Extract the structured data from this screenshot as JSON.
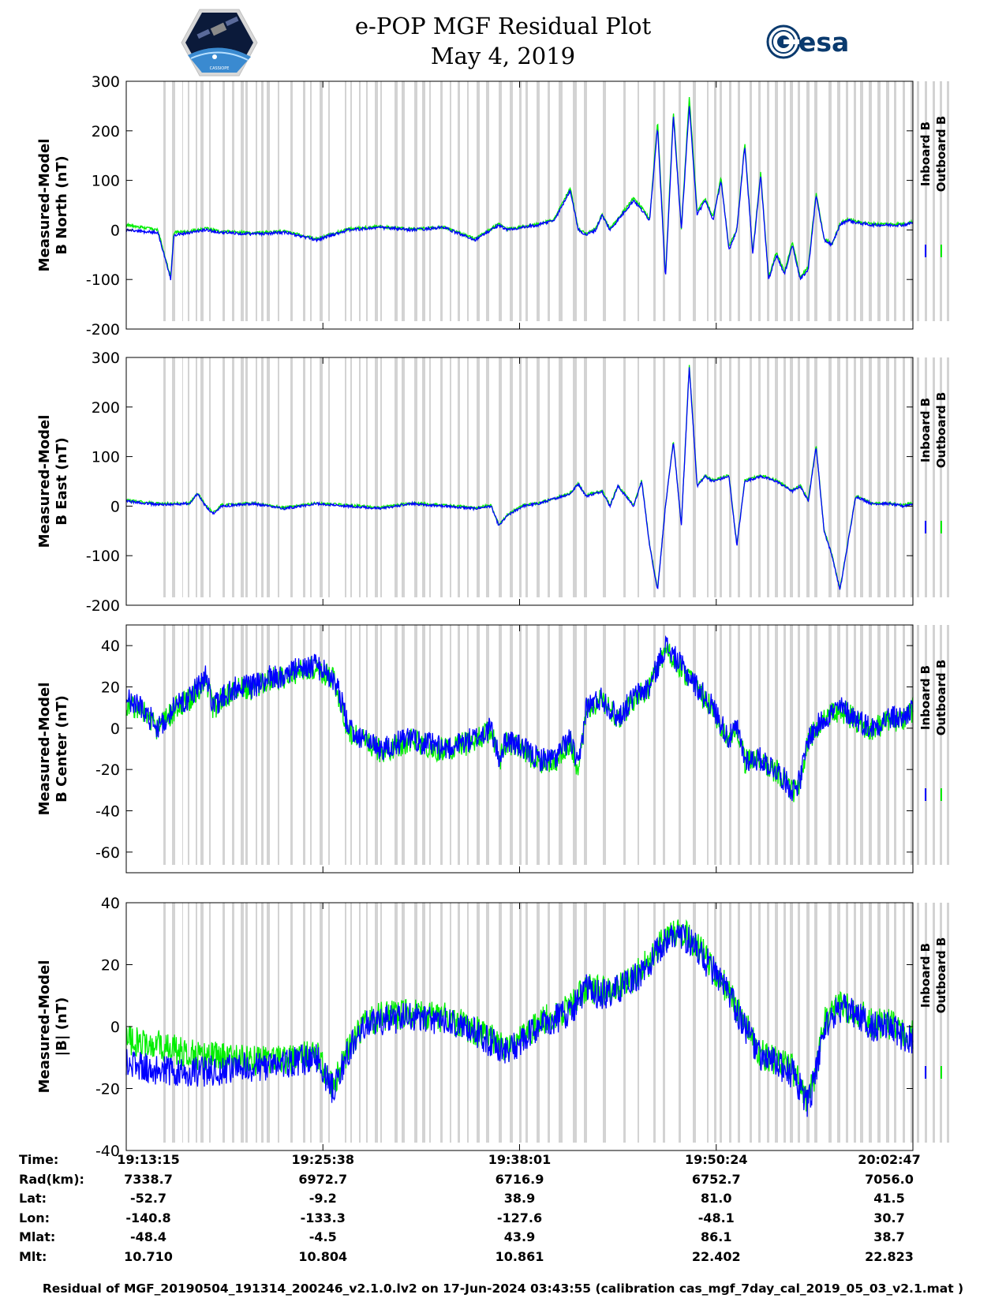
{
  "title": {
    "line1": "e-POP MGF Residual Plot",
    "line2": "May 4, 2019"
  },
  "logos": {
    "left": "cassiope-mission-logo",
    "right": "esa-logo",
    "right_text": "esa",
    "left_text": "CASSIOPE"
  },
  "colors": {
    "inboard": "#0000ff",
    "outboard": "#00ee00",
    "shading": "#d3d3d3"
  },
  "legend": {
    "inboard": "Inboard B",
    "outboard": "Outboard B"
  },
  "time_labels": [
    "19:13:15",
    "19:25:38",
    "19:38:01",
    "19:50:24",
    "20:02:47"
  ],
  "chart_data": [
    {
      "type": "line",
      "ylabel_line1": "Measured-Model",
      "ylabel_line2": "B North (nT)",
      "ylim": [
        -200,
        300
      ],
      "yticks": [
        -200,
        -100,
        0,
        100,
        200,
        300
      ],
      "x_minutes": [
        0,
        1,
        2,
        2.8,
        3,
        4,
        5,
        6,
        8,
        10,
        12,
        14,
        16,
        18,
        20,
        22,
        23,
        23.5,
        24,
        25,
        26,
        27,
        28,
        28.5,
        29,
        29.6,
        30,
        30.5,
        31,
        32,
        32.5,
        33,
        33.5,
        34,
        34.5,
        35,
        35.5,
        36,
        36.5,
        37,
        37.5,
        38,
        38.5,
        39,
        39.5,
        40,
        40.5,
        41,
        41.5,
        42,
        42.5,
        43,
        43.5,
        44,
        44.5,
        45,
        45.5,
        46,
        47,
        48,
        49,
        49.6
      ],
      "series": [
        {
          "name": "Inboard B",
          "values": [
            0,
            -3,
            -5,
            -100,
            -10,
            -5,
            0,
            -5,
            -8,
            -5,
            -20,
            0,
            5,
            0,
            5,
            -20,
            0,
            10,
            0,
            5,
            10,
            20,
            80,
            0,
            -10,
            0,
            30,
            0,
            20,
            60,
            40,
            20,
            210,
            -100,
            230,
            0,
            250,
            30,
            60,
            20,
            100,
            -40,
            0,
            170,
            -50,
            110,
            -100,
            -50,
            -90,
            -30,
            -100,
            -80,
            70,
            -20,
            -30,
            10,
            20,
            15,
            10,
            10,
            10,
            15
          ]
        },
        {
          "name": "Outboard B",
          "values": [
            10,
            5,
            0,
            -95,
            -5,
            -3,
            3,
            -3,
            -6,
            -3,
            -18,
            2,
            7,
            2,
            6,
            -18,
            2,
            12,
            2,
            7,
            12,
            22,
            85,
            2,
            -8,
            2,
            32,
            2,
            22,
            65,
            45,
            22,
            220,
            -90,
            240,
            2,
            270,
            35,
            65,
            25,
            105,
            -35,
            2,
            175,
            -45,
            115,
            -95,
            -45,
            -85,
            -25,
            -95,
            -75,
            75,
            -18,
            -28,
            12,
            22,
            17,
            12,
            12,
            12,
            17
          ]
        }
      ]
    },
    {
      "type": "line",
      "ylabel_line1": "Measured-Model",
      "ylabel_line2": "B East (nT)",
      "ylim": [
        -200,
        300
      ],
      "yticks": [
        -200,
        -100,
        0,
        100,
        200,
        300
      ],
      "x_minutes": [
        0,
        2,
        4,
        4.5,
        5,
        5.5,
        6,
        8,
        10,
        12,
        14,
        16,
        18,
        20,
        22,
        23,
        23.5,
        24,
        25,
        26,
        27,
        28,
        28.5,
        29,
        30,
        30.5,
        31,
        32,
        32.5,
        33,
        33.5,
        34,
        34.5,
        35,
        35.5,
        36,
        36.5,
        37,
        38,
        38.5,
        39,
        40,
        41,
        42,
        42.5,
        43,
        43.5,
        44,
        44.5,
        45,
        46,
        47,
        48,
        49,
        49.6
      ],
      "series": [
        {
          "name": "Inboard B",
          "values": [
            10,
            3,
            5,
            25,
            0,
            -15,
            0,
            5,
            -5,
            5,
            0,
            -5,
            5,
            0,
            -5,
            0,
            -40,
            -20,
            0,
            5,
            15,
            25,
            45,
            20,
            30,
            0,
            40,
            0,
            50,
            -80,
            -170,
            0,
            130,
            -40,
            280,
            40,
            60,
            50,
            60,
            -80,
            50,
            60,
            50,
            30,
            40,
            10,
            120,
            -50,
            -100,
            -170,
            20,
            5,
            5,
            0,
            5
          ]
        },
        {
          "name": "Outboard B",
          "values": [
            12,
            5,
            6,
            26,
            2,
            -13,
            2,
            6,
            -3,
            6,
            2,
            -3,
            6,
            2,
            -3,
            2,
            -38,
            -18,
            2,
            6,
            16,
            26,
            46,
            22,
            32,
            2,
            42,
            2,
            52,
            -78,
            -168,
            2,
            132,
            -38,
            285,
            42,
            62,
            52,
            62,
            -78,
            52,
            62,
            52,
            32,
            42,
            12,
            122,
            -48,
            -98,
            -168,
            22,
            6,
            6,
            2,
            6
          ]
        }
      ]
    },
    {
      "type": "line",
      "ylabel_line1": "Measured-Model",
      "ylabel_line2": "B Center (nT)",
      "ylim": [
        -70,
        50
      ],
      "yticks": [
        -60,
        -40,
        -20,
        0,
        20,
        40
      ],
      "x_minutes": [
        0,
        1,
        2,
        2.5,
        3,
        4,
        5,
        5.5,
        6,
        7,
        8,
        9,
        10,
        11,
        12,
        13,
        13.5,
        14,
        15,
        16,
        18,
        20,
        22,
        23,
        23.5,
        24,
        25,
        26,
        27,
        28,
        28.5,
        29,
        30,
        31,
        32,
        33,
        33.5,
        34,
        35,
        36,
        37,
        38,
        38.5,
        39,
        40,
        41,
        41.5,
        42,
        42.5,
        43,
        44,
        45,
        46,
        47,
        48,
        49,
        49.6
      ],
      "series": [
        {
          "name": "Inboard B",
          "values": [
            15,
            10,
            0,
            5,
            10,
            15,
            25,
            10,
            15,
            20,
            20,
            25,
            25,
            30,
            30,
            25,
            15,
            0,
            -5,
            -10,
            -5,
            -10,
            -5,
            0,
            -15,
            -5,
            -10,
            -15,
            -15,
            -5,
            -20,
            10,
            15,
            5,
            15,
            20,
            30,
            40,
            30,
            20,
            10,
            -5,
            0,
            -15,
            -15,
            -20,
            -25,
            -30,
            -25,
            -5,
            5,
            10,
            5,
            0,
            5,
            5,
            10
          ]
        },
        {
          "name": "Outboard B",
          "values": [
            12,
            9,
            -1,
            4,
            9,
            14,
            24,
            9,
            14,
            19,
            19,
            24,
            24,
            29,
            29,
            24,
            14,
            -1,
            -6,
            -11,
            -6,
            -11,
            -6,
            -1,
            -16,
            -6,
            -11,
            -16,
            -16,
            -6,
            -21,
            9,
            14,
            4,
            14,
            19,
            29,
            39,
            29,
            19,
            9,
            -6,
            -1,
            -16,
            -16,
            -21,
            -26,
            -31,
            -26,
            -6,
            4,
            9,
            4,
            -1,
            4,
            4,
            9
          ]
        }
      ]
    },
    {
      "type": "line",
      "ylabel_line1": "Measured-Model",
      "ylabel_line2": "|B| (nT)",
      "ylim": [
        -40,
        40
      ],
      "yticks": [
        -40,
        -20,
        0,
        20,
        40
      ],
      "x_minutes": [
        0,
        2,
        4,
        6,
        8,
        10,
        12,
        12.5,
        13,
        13.5,
        14,
        15,
        16,
        18,
        20,
        22,
        24,
        25,
        26,
        28,
        29,
        30,
        31,
        32,
        33,
        34,
        35,
        36,
        37,
        38,
        39,
        40,
        41,
        42,
        42.5,
        43,
        43.5,
        44,
        45,
        46,
        47,
        48,
        49,
        49.6
      ],
      "series": [
        {
          "name": "Inboard B",
          "values": [
            -12,
            -14,
            -15,
            -14,
            -13,
            -12,
            -10,
            -15,
            -20,
            -15,
            -8,
            0,
            2,
            3,
            2,
            -2,
            -8,
            -5,
            0,
            5,
            12,
            10,
            12,
            15,
            20,
            28,
            30,
            25,
            18,
            10,
            0,
            -10,
            -12,
            -15,
            -20,
            -25,
            -15,
            0,
            6,
            4,
            0,
            0,
            -3,
            -4
          ]
        },
        {
          "name": "Outboard B",
          "values": [
            -4,
            -6,
            -9,
            -10,
            -11,
            -11,
            -9,
            -14,
            -19,
            -14,
            -7,
            1,
            3,
            4,
            3,
            -1,
            -7,
            -4,
            1,
            6,
            13,
            11,
            13,
            16,
            21,
            29,
            31,
            26,
            19,
            11,
            1,
            -9,
            -11,
            -14,
            -19,
            -24,
            -14,
            1,
            7,
            5,
            1,
            1,
            -2,
            -3
          ]
        }
      ]
    }
  ],
  "orbit_info": {
    "rows": [
      {
        "label": "Time:",
        "values": [
          "19:13:15",
          "19:25:38",
          "19:38:01",
          "19:50:24",
          "20:02:47"
        ]
      },
      {
        "label": "Rad(km):",
        "values": [
          "7338.7",
          "6972.7",
          "6716.9",
          "6752.7",
          "7056.0"
        ]
      },
      {
        "label": "Lat:",
        "values": [
          "-52.7",
          "-9.2",
          "38.9",
          "81.0",
          "41.5"
        ]
      },
      {
        "label": "Lon:",
        "values": [
          "-140.8",
          "-133.3",
          "-127.6",
          "-48.1",
          "30.7"
        ]
      },
      {
        "label": "Mlat:",
        "values": [
          "-48.4",
          "-4.5",
          "43.9",
          "86.1",
          "38.7"
        ]
      },
      {
        "label": "Mlt:",
        "values": [
          "10.710",
          "10.804",
          "10.861",
          "22.402",
          "22.823"
        ]
      }
    ]
  },
  "footer": "Residual of MGF_20190504_191314_200246_v2.1.0.lv2 on 17-Jun-2024 03:43:55 (calibration cas_mgf_7day_cal_2019_05_03_v2.1.mat )"
}
